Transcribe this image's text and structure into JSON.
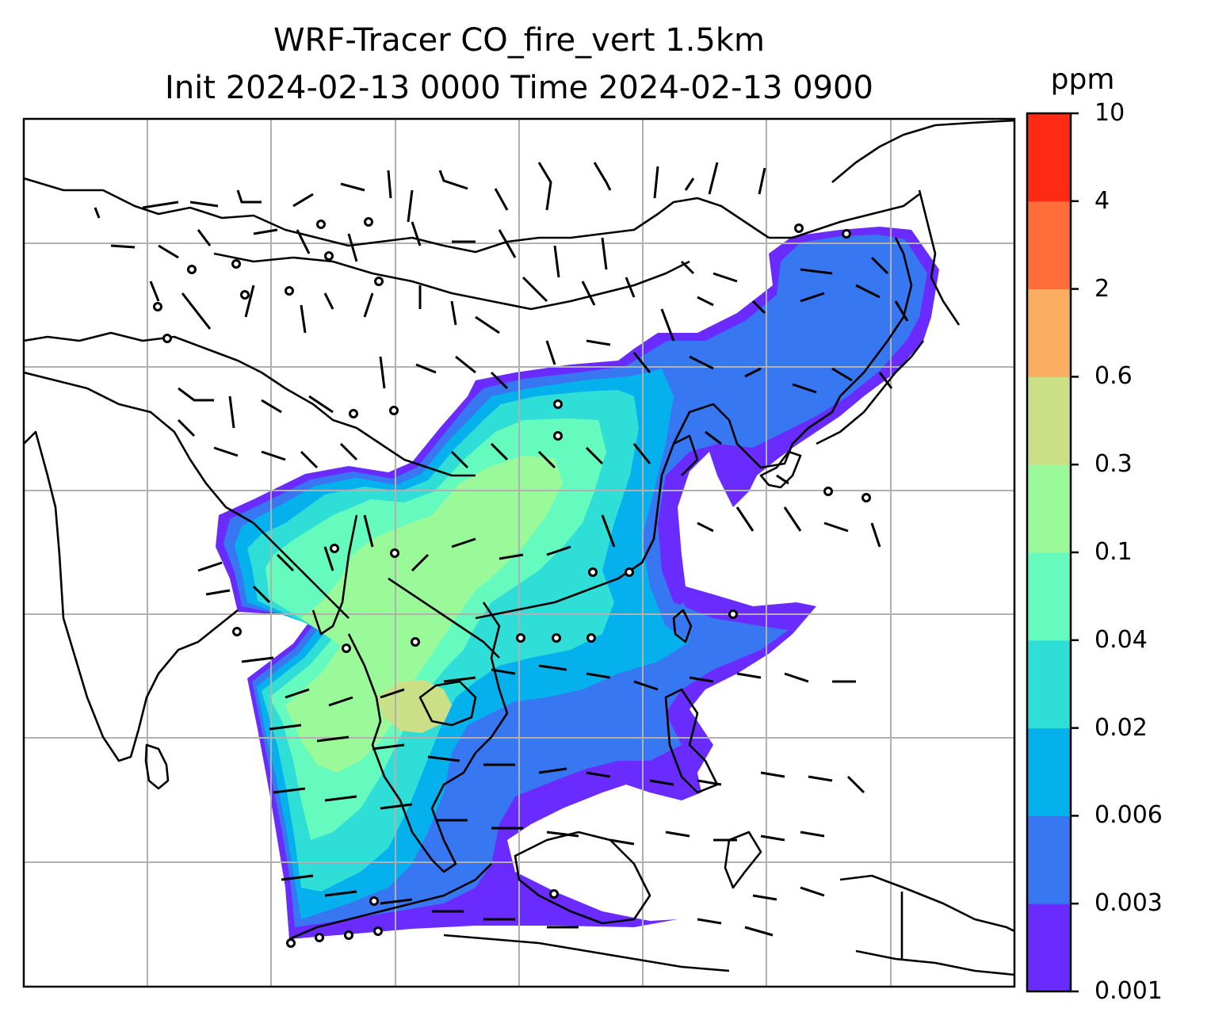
{
  "title_line1": "WRF-Tracer CO_fire_vert 1.5km",
  "title_line2": "Init 2024-02-13 0000 Time 2024-02-13 0900",
  "colorbar": {
    "unit": "ppm",
    "levels": [
      "0.001",
      "0.003",
      "0.006",
      "0.02",
      "0.04",
      "0.1",
      "0.3",
      "0.6",
      "2",
      "4",
      "10"
    ],
    "colors": [
      "#6a2bff",
      "#3877f2",
      "#05b1ec",
      "#2fded6",
      "#66fbbe",
      "#9afa9a",
      "#cbdf87",
      "#fbae62",
      "#ff6d3a",
      "#ff2a13"
    ]
  },
  "map_styles": {
    "coastline_color": "#000000",
    "grid_color": "#b0b0b0",
    "barb_color": "#000000"
  }
}
